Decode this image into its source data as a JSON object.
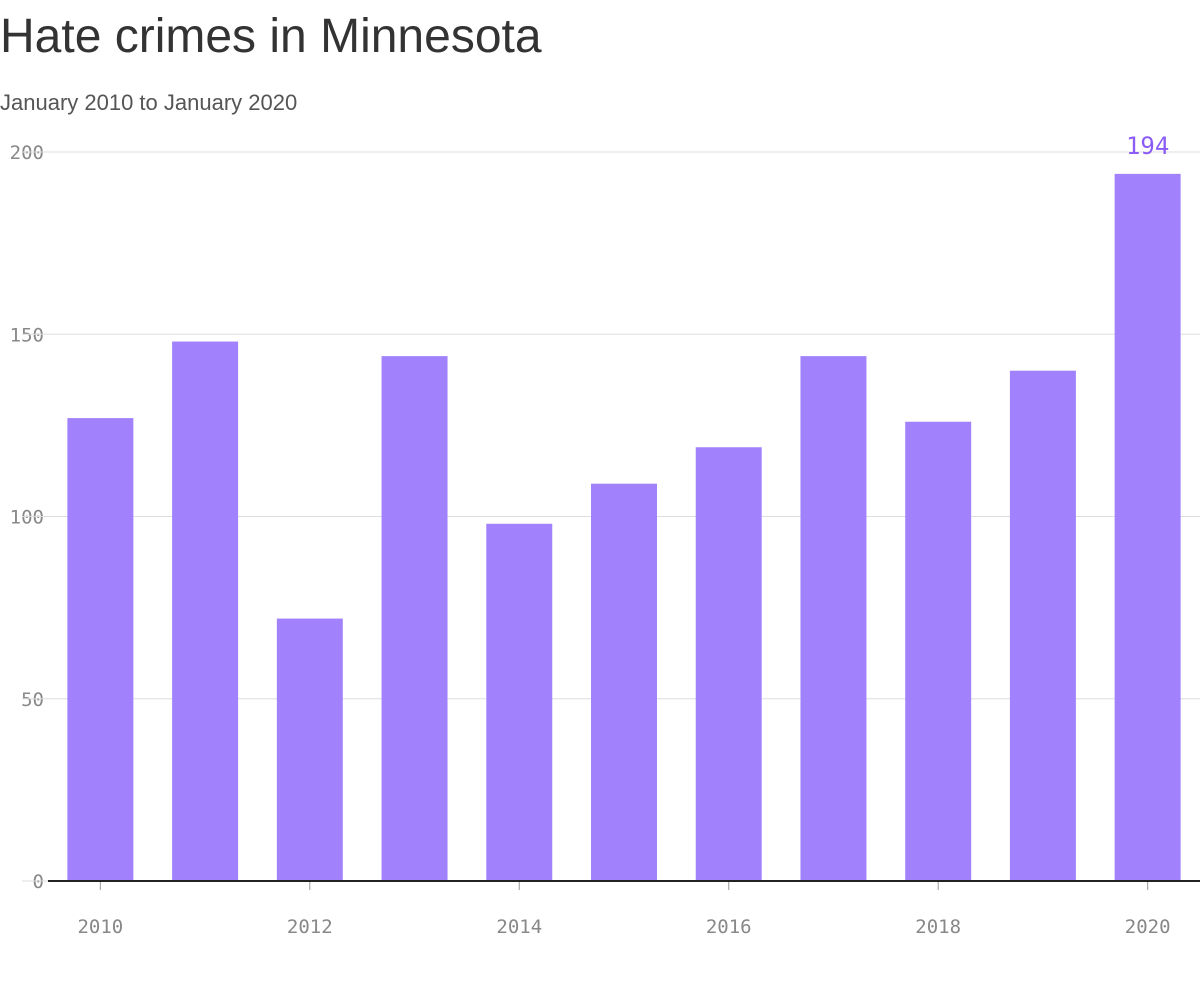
{
  "chart_data": {
    "type": "bar",
    "title": "Hate crimes in Minnesota",
    "subtitle": "January 2010 to January 2020",
    "x": [
      2010,
      2011,
      2012,
      2013,
      2014,
      2015,
      2016,
      2017,
      2018,
      2019,
      2020
    ],
    "values": [
      127,
      148,
      72,
      144,
      98,
      109,
      119,
      144,
      126,
      140,
      194
    ],
    "color": "#a182fc",
    "label_color": "#8b5cf6",
    "data_label": "last",
    "xlim": [
      2009.5,
      2020.5
    ],
    "xticks": [
      2010,
      2012,
      2014,
      2016,
      2018,
      2020
    ],
    "ylim": [
      0,
      200
    ],
    "yticks": [
      0,
      50,
      100,
      150,
      200
    ],
    "grid": true
  }
}
